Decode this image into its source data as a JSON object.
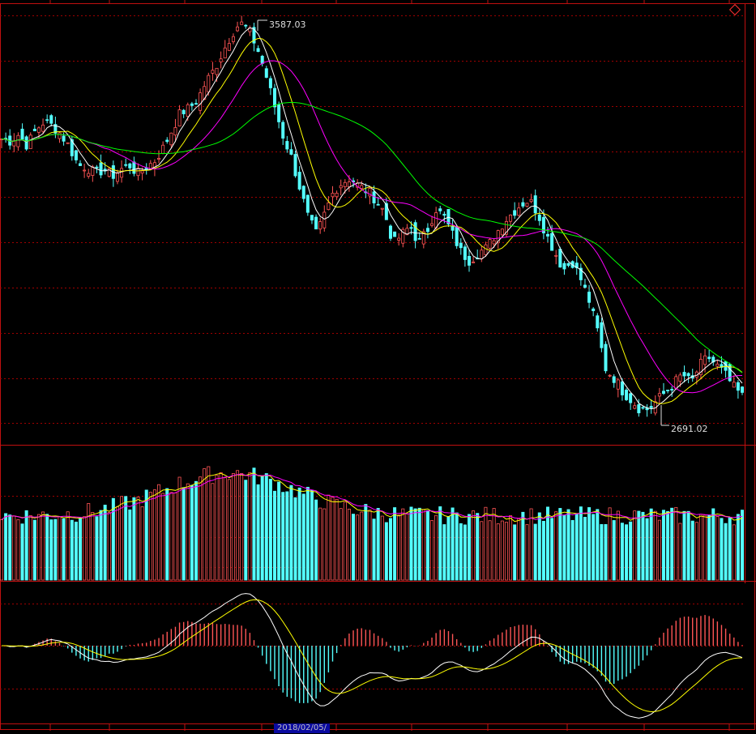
{
  "annotations": {
    "high_label": "3587.03",
    "low_label": "2691.02",
    "cursor_date": "2018/02/05/"
  },
  "colors": {
    "background": "#000000",
    "up_candle": "#ff5555",
    "down_candle": "#54ffff",
    "ma5": "#ffffff",
    "ma10": "#ffff00",
    "ma20": "#ff00ff",
    "ma60": "#00ff00",
    "grid": "#a00000",
    "frame": "#c01010"
  },
  "chart_data": [
    {
      "type": "candlestick",
      "panel": "price",
      "high": 3587.03,
      "low": 2691.02,
      "overlays": [
        "MA5",
        "MA10",
        "MA20",
        "MA60"
      ],
      "grid": true,
      "closes": [
        3320,
        3315,
        3330,
        3305,
        3340,
        3360,
        3350,
        3330,
        3300,
        3260,
        3255,
        3240,
        3250,
        3235,
        3250,
        3260,
        3240,
        3255,
        3270,
        3300,
        3340,
        3380,
        3390,
        3410,
        3450,
        3480,
        3520,
        3560,
        3587,
        3570,
        3530,
        3470,
        3400,
        3330,
        3280,
        3210,
        3140,
        3100,
        3150,
        3200,
        3220,
        3230,
        3210,
        3200,
        3180,
        3150,
        3080,
        3100,
        3120,
        3080,
        3110,
        3160,
        3140,
        3100,
        3060,
        3040,
        3060,
        3070,
        3100,
        3130,
        3150,
        3170,
        3180,
        3150,
        3100,
        3060,
        3020,
        3040,
        3000,
        2950,
        2880,
        2790,
        2770,
        2740,
        2720,
        2700,
        2700,
        2720,
        2740,
        2760,
        2780,
        2760,
        2800,
        2820,
        2800,
        2780,
        2750,
        2730
      ],
      "y_range": [
        2620,
        3620
      ]
    },
    {
      "type": "bar",
      "panel": "volume",
      "overlays": [
        "MA5",
        "MA10"
      ],
      "grid": true
    },
    {
      "type": "bar",
      "panel": "macd",
      "series": [
        {
          "name": "DIF"
        },
        {
          "name": "DEA"
        }
      ],
      "grid": true
    }
  ]
}
